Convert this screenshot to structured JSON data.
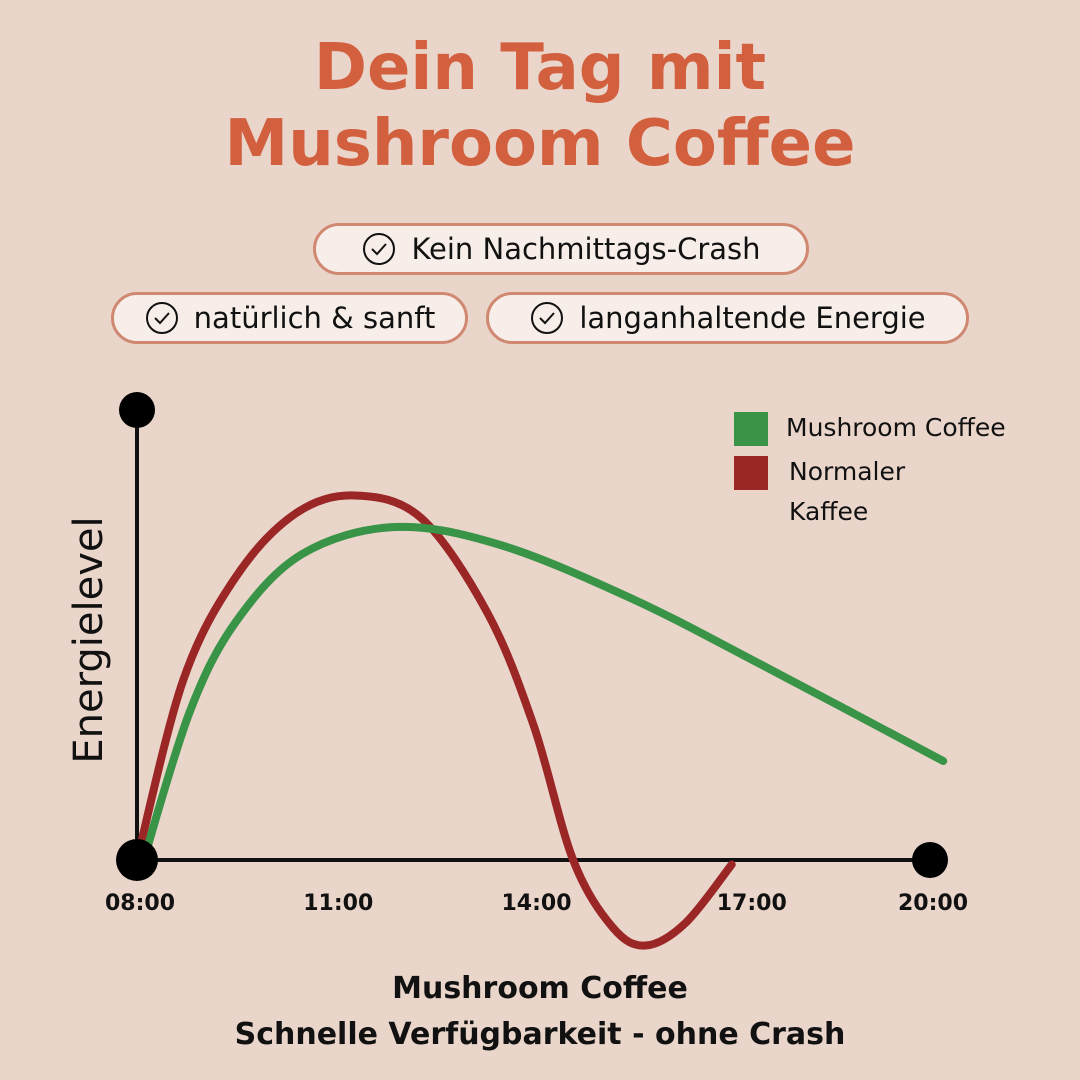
{
  "header": {
    "title_line1": "Dein Tag mit",
    "title_line2": "Mushroom Coffee"
  },
  "pills": [
    {
      "icon": "check-circle-icon",
      "label": "Kein Nachmittags-Crash"
    },
    {
      "icon": "check-circle-icon",
      "label": "natürlich & sanft"
    },
    {
      "icon": "check-circle-icon",
      "label": "langanhaltende Energie"
    }
  ],
  "footer": {
    "line1": "Mushroom Coffee",
    "line2": "Schnelle Verfügbarkeit - ohne Crash"
  },
  "chart_data": {
    "type": "line",
    "title": "",
    "xlabel": "",
    "ylabel": "Energielevel",
    "x_ticks": [
      "08:00",
      "11:00",
      "14:00",
      "17:00",
      "20:00"
    ],
    "xlim": [
      8,
      20
    ],
    "ylim": [
      -25,
      100
    ],
    "grid": false,
    "legend_placement": "top-right",
    "series": [
      {
        "name": "Mushroom Coffee",
        "color": "#3a9447",
        "x": [
          8.1,
          8.8,
          9.5,
          10.5,
          11.9,
          13.5,
          15.5,
          17.5,
          20.2
        ],
        "y": [
          0,
          33,
          53,
          68,
          74,
          70,
          58,
          43,
          22
        ]
      },
      {
        "name": "Normaler Kaffee",
        "color": "#9a2626",
        "x": [
          8.0,
          8.7,
          9.5,
          10.4,
          11.3,
          12.3,
          13.3,
          14.0,
          14.6,
          15.2,
          15.7,
          16.3,
          17.0
        ],
        "y": [
          0,
          40,
          63,
          77,
          81,
          76,
          55,
          30,
          0,
          -15,
          -19,
          -14,
          -1
        ]
      }
    ]
  }
}
